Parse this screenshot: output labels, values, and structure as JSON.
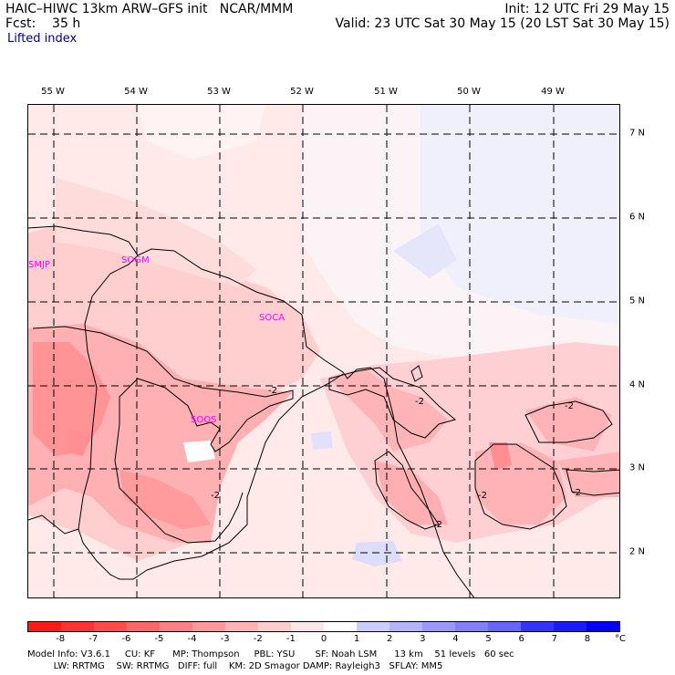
{
  "header": {
    "model": "HAIC–HIWC 13km ARW–GFS init   NCAR/MMM",
    "fcst": "Fcst:    35 h",
    "field": "Lifted index",
    "init": "Init: 12 UTC Fri 29 May 15",
    "valid": "Valid: 23 UTC Sat 30 May 15 (20 LST Sat 30 May 15)"
  },
  "lon_labels": [
    "55 W",
    "54 W",
    "53 W",
    "52 W",
    "51 W",
    "50 W",
    "49 W"
  ],
  "lat_labels": [
    "7 N",
    "6 N",
    "5 N",
    "4 N",
    "3 N",
    "2 N"
  ],
  "stations": [
    "SMJP",
    "SOGM",
    "SOCA",
    "SOOS"
  ],
  "contour_labels": [
    "-2",
    "-2",
    "-2",
    "-2",
    "-2",
    "-2",
    "-2"
  ],
  "colorbar": {
    "labels": [
      "-8",
      "-7",
      "-6",
      "-5",
      "-4",
      "-3",
      "-2",
      "-1",
      "0",
      "1",
      "2",
      "3",
      "4",
      "5",
      "6",
      "7",
      "8"
    ],
    "unit": "°C",
    "colors": [
      "#ff1a1a",
      "#ff3333",
      "#ff4d4d",
      "#ff6666",
      "#ff8080",
      "#ff9999",
      "#ffb3b3",
      "#ffcccc",
      "#ffe6e6",
      "#ffffff",
      "#ccccff",
      "#b3b3ff",
      "#9999ff",
      "#8080ff",
      "#6666ff",
      "#3333ff",
      "#1a1aff",
      "#0000ff"
    ]
  },
  "footer": {
    "line1": "Model Info: V3.6.1     CU: KF      MP: Thompson     PBL: YSU       SF: Noah LSM      13 km    51 levels   60 sec",
    "line2": "         LW: RRTMG    SW: RRTMG   DIFF: full    KM: 2D Smagor DAMP: Rayleigh3   SFLAY: MM5"
  },
  "legend_colors": {
    "neg1": "#ffe6e6",
    "neg2": "#ffcccc",
    "neg3": "#ffb3b3",
    "neg4": "#ff9999",
    "pos1": "#eeeefc",
    "pos2": "#ccccff",
    "station": "#ff00ff"
  }
}
